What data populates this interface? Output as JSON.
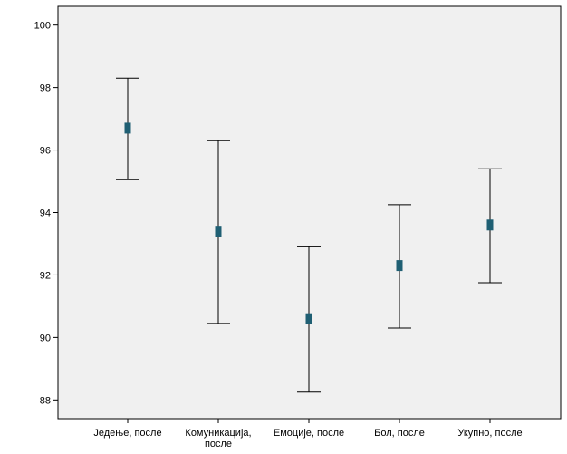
{
  "chart_data": {
    "type": "errorbar",
    "categories": [
      "Једење, после",
      "Комуникација, после",
      "Емоције, после",
      "Бол, после",
      "Укупно, после"
    ],
    "category_lines": [
      [
        "Једење, после"
      ],
      [
        "Комуникација,",
        "после"
      ],
      [
        "Емоције, после"
      ],
      [
        "Бол, после"
      ],
      [
        "Укупно, после"
      ]
    ],
    "series": [
      {
        "mean": [
          96.7,
          93.4,
          90.6,
          92.3,
          93.6
        ],
        "lower": [
          95.05,
          90.45,
          88.25,
          90.3,
          91.75
        ],
        "upper": [
          98.3,
          96.3,
          92.9,
          94.25,
          95.4
        ]
      }
    ],
    "ylim": [
      87.4,
      100.6
    ],
    "yticks": [
      88,
      90,
      92,
      94,
      96,
      98,
      100
    ],
    "xlabel": "",
    "ylabel": "",
    "title": "",
    "grid": false,
    "colors": {
      "plot_bg": "#f0f0f0",
      "frame": "#000000",
      "whisker": "#000000",
      "marker": "#1f5f73"
    }
  }
}
